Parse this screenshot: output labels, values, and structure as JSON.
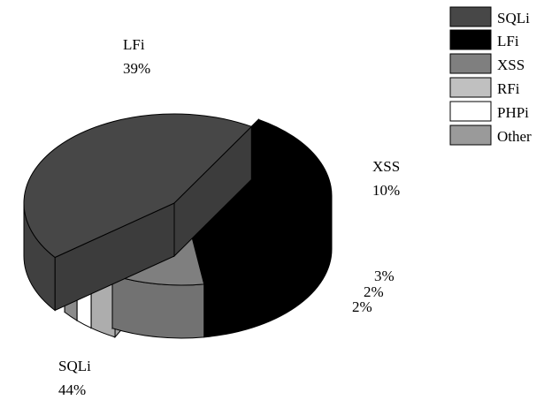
{
  "chart_data": {
    "type": "pie",
    "style": "3d-exploded",
    "slices": [
      {
        "name": "SQLi",
        "value": 44,
        "label": "SQLi",
        "pct_label": "44%",
        "color": "#474747"
      },
      {
        "name": "LFi",
        "value": 39,
        "label": "LFi",
        "pct_label": "39%",
        "color": "#000000"
      },
      {
        "name": "XSS",
        "value": 10,
        "label": "XSS",
        "pct_label": "10%",
        "color": "#7f7f7f"
      },
      {
        "name": "RFi",
        "value": 3,
        "label": "",
        "pct_label": "3%",
        "color": "#c0c0c0"
      },
      {
        "name": "PHPi",
        "value": 2,
        "label": "",
        "pct_label": "2%",
        "color": "#ffffff"
      },
      {
        "name": "Other",
        "value": 2,
        "label": "",
        "pct_label": "2%",
        "color": "#9a9a9a"
      }
    ],
    "legend": {
      "placement": "top-right",
      "entries": [
        "SQLi",
        "LFi",
        "XSS",
        "RFi",
        "PHPi",
        "Other"
      ]
    }
  }
}
